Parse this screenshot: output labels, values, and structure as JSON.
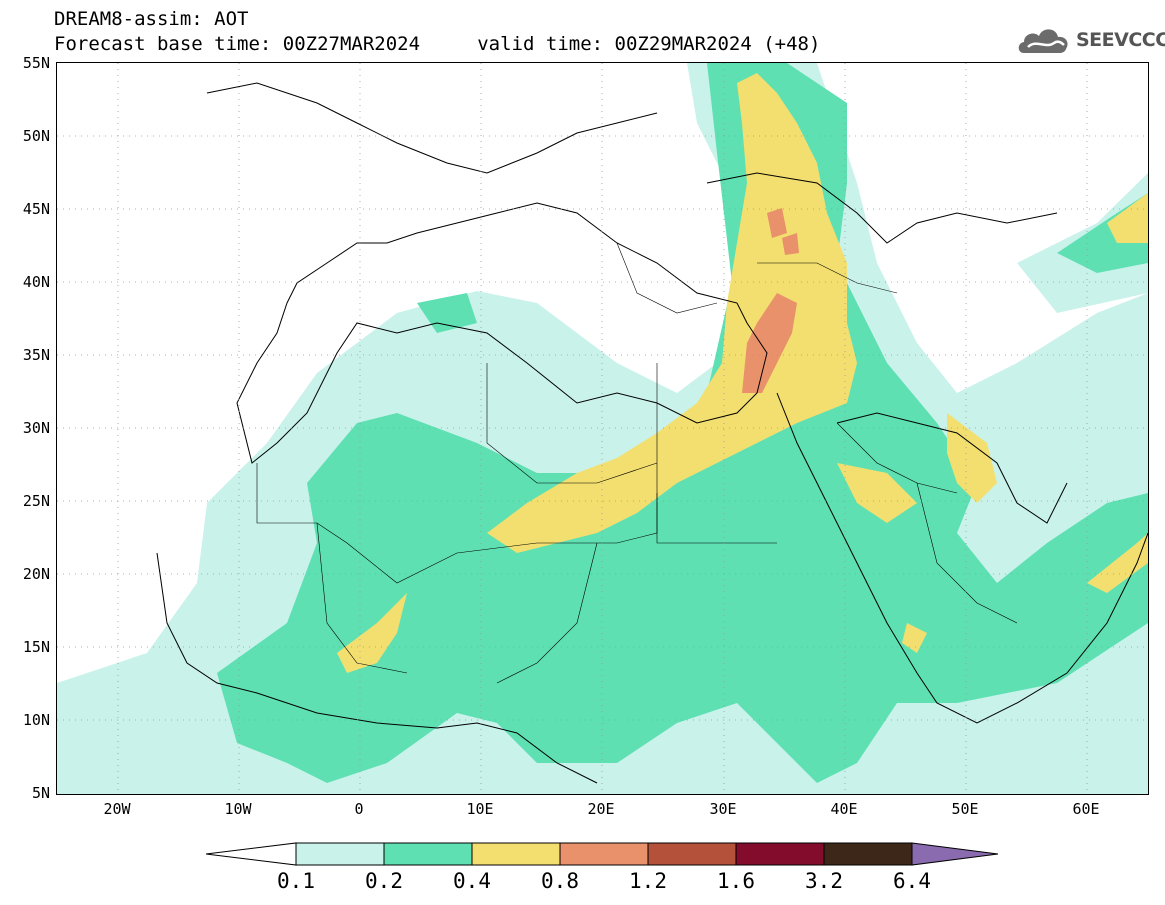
{
  "header": {
    "title_line1": "DREAM8-assim: AOT",
    "title_line2": "Forecast base time: 00Z27MAR2024     valid time: 00Z29MAR2024 (+48)",
    "logo_text": "SEEVCCC"
  },
  "map": {
    "region": "Northern Africa, Mediterranean and Middle East",
    "lat_labels": [
      "55N",
      "50N",
      "45N",
      "40N",
      "35N",
      "30N",
      "25N",
      "20N",
      "15N",
      "10N",
      "5N"
    ],
    "lon_labels": [
      "20W",
      "10W",
      "0",
      "10E",
      "20E",
      "30E",
      "40E",
      "50E",
      "60E"
    ],
    "lat_range": [
      5,
      55
    ],
    "lon_range": [
      -25,
      65
    ],
    "grid": "dotted"
  },
  "colorbar": {
    "levels": [
      "0.1",
      "0.2",
      "0.4",
      "0.8",
      "1.2",
      "1.6",
      "3.2",
      "6.4"
    ],
    "colors": [
      "#c9f2ea",
      "#5ee0b3",
      "#f3df6f",
      "#e8916a",
      "#b4513a",
      "#830b2b",
      "#3c2718",
      "#8a6bb0"
    ]
  }
}
